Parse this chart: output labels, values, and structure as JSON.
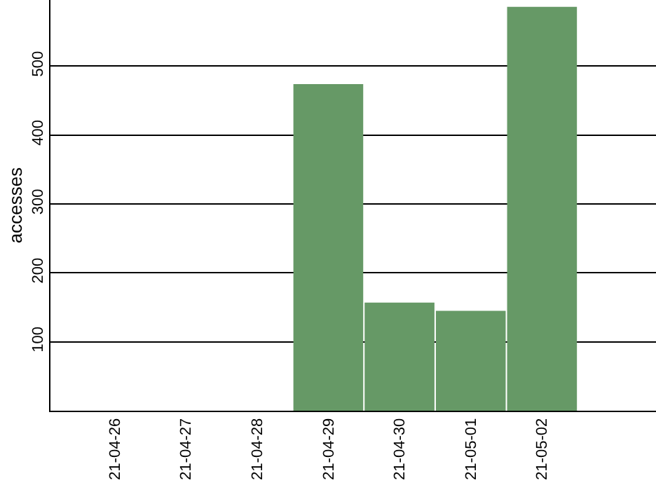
{
  "chart_data": {
    "type": "bar",
    "ylabel": "accesses",
    "categories": [
      "21-04-26",
      "21-04-27",
      "21-04-28",
      "21-04-29",
      "21-04-30",
      "21-05-01",
      "21-05-02"
    ],
    "values": [
      0,
      0,
      0,
      474,
      157,
      145,
      586
    ],
    "color": "#669966",
    "ylim": [
      0,
      596
    ],
    "yticks": [
      100,
      200,
      300,
      400,
      500
    ],
    "grid": "y"
  }
}
